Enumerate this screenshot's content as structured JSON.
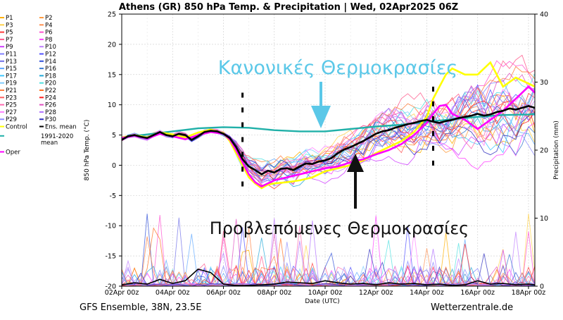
{
  "chart_data": {
    "type": "line",
    "title": "Athens  (GR)  850 hPa Temp. & Precipitation | Wed, 02Apr2025 06Z",
    "ylabel": "850 hPa Temp. (°C)",
    "y2label": "Precipitation (mm)",
    "xlabel": "Date (UTC)",
    "ylim": [
      -20,
      25
    ],
    "y2lim": [
      0,
      40
    ],
    "yticks": [
      -20,
      -15,
      -10,
      -5,
      0,
      5,
      10,
      15,
      20,
      25
    ],
    "y2ticks": [
      0,
      10,
      20,
      30,
      40
    ],
    "xlim": [
      0,
      16.25
    ],
    "xticks": [
      {
        "x": 0,
        "label": "02Apr 00z"
      },
      {
        "x": 2,
        "label": "04Apr 00z"
      },
      {
        "x": 4,
        "label": "06Apr 00z"
      },
      {
        "x": 6,
        "label": "08Apr 00z"
      },
      {
        "x": 8,
        "label": "10Apr 00z"
      },
      {
        "x": 10,
        "label": "12Apr 00z"
      },
      {
        "x": 12,
        "label": "14Apr 00z"
      },
      {
        "x": 14,
        "label": "16Apr 00z"
      },
      {
        "x": 16,
        "label": "18Apr 00z"
      }
    ],
    "grid": true,
    "legend_position": "left",
    "legend": [
      {
        "name": "P1",
        "color": "#ffb000"
      },
      {
        "name": "P2",
        "color": "#ff9c40"
      },
      {
        "name": "P3",
        "color": "#ffd24a"
      },
      {
        "name": "P4",
        "color": "#ff9050"
      },
      {
        "name": "P5",
        "color": "#ff3b3b"
      },
      {
        "name": "P6",
        "color": "#ff50d0"
      },
      {
        "name": "P7",
        "color": "#ff5a8c"
      },
      {
        "name": "P8",
        "color": "#ff40ff"
      },
      {
        "name": "P9",
        "color": "#d040ff"
      },
      {
        "name": "P10",
        "color": "#c080ff"
      },
      {
        "name": "P11",
        "color": "#8080ff"
      },
      {
        "name": "P12",
        "color": "#5050ff"
      },
      {
        "name": "P13",
        "color": "#7070e8"
      },
      {
        "name": "P14",
        "color": "#3050d8"
      },
      {
        "name": "P15",
        "color": "#60a8ff"
      },
      {
        "name": "P16",
        "color": "#3a7ad0"
      },
      {
        "name": "P17",
        "color": "#40c8ff"
      },
      {
        "name": "P18",
        "color": "#20a8d8"
      },
      {
        "name": "P19",
        "color": "#80ccff"
      },
      {
        "name": "P20",
        "color": "#50e0e0"
      },
      {
        "name": "P21",
        "color": "#ff8040"
      },
      {
        "name": "P22",
        "color": "#ff7020"
      },
      {
        "name": "P23",
        "color": "#ff6060"
      },
      {
        "name": "P24",
        "color": "#ff2020"
      },
      {
        "name": "P25",
        "color": "#ff6ab0"
      },
      {
        "name": "P26",
        "color": "#e050c0"
      },
      {
        "name": "P27",
        "color": "#ff80ff"
      },
      {
        "name": "P28",
        "color": "#b070ff"
      },
      {
        "name": "P29",
        "color": "#9090ff"
      },
      {
        "name": "P30",
        "color": "#3030c0"
      },
      {
        "name": "Control",
        "color": "#ffff00"
      },
      {
        "name": "Ens. mean",
        "color": "#000000"
      },
      {
        "name": "1991-2020 mean",
        "color": "#20b0a8"
      },
      {
        "name": "Oper",
        "color": "#ff00ff"
      }
    ],
    "ens_mean": {
      "x": [
        0,
        0.25,
        0.5,
        0.75,
        1,
        1.25,
        1.5,
        1.75,
        2,
        2.25,
        2.5,
        2.75,
        3,
        3.25,
        3.5,
        3.75,
        4,
        4.25,
        4.5,
        4.75,
        5,
        5.25,
        5.5,
        5.75,
        6,
        6.25,
        6.5,
        6.75,
        7,
        7.25,
        7.5,
        7.75,
        8,
        8.25,
        8.5,
        8.75,
        9,
        9.25,
        9.5,
        9.75,
        10,
        10.25,
        10.5,
        10.75,
        11,
        11.25,
        11.5,
        11.75,
        12,
        12.25,
        12.5,
        12.75,
        13,
        13.25,
        13.5,
        13.75,
        14,
        14.25,
        14.5,
        14.75,
        15,
        15.25,
        15.5,
        15.75,
        16,
        16.25
      ],
      "y": [
        4.2,
        4.8,
        5,
        4.7,
        4.5,
        5,
        5.5,
        5,
        4.8,
        5.2,
        5,
        4.2,
        4.8,
        5.5,
        5.7,
        5.6,
        5.2,
        4.5,
        3,
        1,
        -0.2,
        -0.8,
        -1.5,
        -0.9,
        -1.2,
        -0.6,
        -0.5,
        -0.8,
        -0.2,
        0.3,
        0.2,
        0.6,
        0.8,
        1.2,
        2,
        2.6,
        3,
        3.5,
        4,
        4.6,
        5.2,
        5.6,
        5.8,
        6.2,
        6.5,
        6.8,
        7,
        7.3,
        7.5,
        7.2,
        7,
        7.3,
        7.5,
        7.8,
        8,
        8.2,
        8.5,
        8.2,
        8.4,
        8.8,
        9,
        9.4,
        9.2,
        9.5,
        9.8,
        9.5
      ]
    },
    "control": {
      "x": [
        0,
        0.5,
        1,
        1.5,
        2,
        2.5,
        3,
        3.5,
        4,
        4.25,
        4.5,
        4.75,
        5,
        5.25,
        5.5,
        5.75,
        6,
        6.5,
        7,
        7.5,
        8,
        8.5,
        9,
        9.5,
        10,
        10.5,
        11,
        11.5,
        12,
        12.25,
        12.5,
        12.75,
        13,
        13.5,
        14,
        14.5,
        15,
        15.5,
        16,
        16.25
      ],
      "y": [
        4.6,
        5,
        4.6,
        5.4,
        5.1,
        4.6,
        5.4,
        5.9,
        5.3,
        4,
        2,
        0,
        -2,
        -3,
        -3.8,
        -3.2,
        -3,
        -2.8,
        -2.5,
        -2,
        -1,
        -0.5,
        0,
        0.8,
        2,
        3,
        4,
        5.5,
        8,
        11,
        13,
        15,
        16,
        15,
        15,
        17,
        13,
        14.5,
        13.5,
        13
      ]
    },
    "oper": {
      "x": [
        0,
        0.5,
        1,
        1.5,
        2,
        2.5,
        3,
        3.5,
        4,
        4.25,
        4.5,
        4.75,
        5,
        5.25,
        5.5,
        5.75,
        6,
        6.5,
        7,
        7.5,
        8,
        8.5,
        9,
        9.5,
        10,
        10.5,
        11,
        11.5,
        12,
        12.25,
        12.5,
        12.75,
        13,
        13.5,
        14,
        14.5,
        15,
        15.5,
        16,
        16.25
      ],
      "y": [
        4.5,
        4.9,
        4.4,
        5.2,
        4.8,
        4.3,
        5,
        5.5,
        5.2,
        4.3,
        2.5,
        0.5,
        -1.5,
        -2.8,
        -3.5,
        -3,
        -2.5,
        -2,
        -1.5,
        -1,
        -0.5,
        -0.2,
        0.5,
        1,
        1.8,
        2.5,
        3.5,
        5,
        7,
        8.5,
        9.8,
        10,
        8.5,
        7.5,
        6,
        7.5,
        9,
        11,
        13,
        12
      ]
    },
    "climatology_mean": {
      "x": [
        0,
        1,
        2,
        3,
        4,
        5,
        6,
        7,
        8,
        9,
        10,
        11,
        12,
        13,
        14,
        15,
        16,
        16.25
      ],
      "y": [
        4.6,
        5.1,
        5.6,
        6.1,
        6.3,
        6.2,
        5.8,
        5.6,
        5.6,
        6.0,
        6.4,
        6.7,
        7.2,
        7.6,
        8.0,
        8.3,
        8.4,
        8.5
      ]
    },
    "precipitation_mean_mm": {
      "x": [
        0,
        0.5,
        1,
        1.5,
        2,
        2.5,
        3,
        3.5,
        4,
        4.5,
        5,
        5.5,
        6,
        6.5,
        7,
        7.5,
        8,
        8.5,
        9,
        9.5,
        10,
        10.5,
        11,
        11.5,
        12,
        12.5,
        13,
        13.5,
        14,
        14.5,
        15,
        15.5,
        16,
        16.25
      ],
      "y": [
        0.2,
        0.5,
        0.3,
        1,
        0.4,
        0.8,
        2.5,
        2,
        0.3,
        0.1,
        0.1,
        0.2,
        0.3,
        0.6,
        0.5,
        0.4,
        0.8,
        0.5,
        0.3,
        0.4,
        0.2,
        0.5,
        0.3,
        0.4,
        0.2,
        0.3,
        0.1,
        0.2,
        0.8,
        0.3,
        0.4,
        0.2,
        0.3,
        0.2
      ]
    },
    "annotations": {
      "normal": "Κανονικές Θερμοκρασίες",
      "forecast": "Προβλεπόμενες Θερμοκρασίες"
    }
  },
  "footer": {
    "model": "GFS Ensemble, 38N, 23.5E",
    "source": "Wetterzentrale.de"
  }
}
